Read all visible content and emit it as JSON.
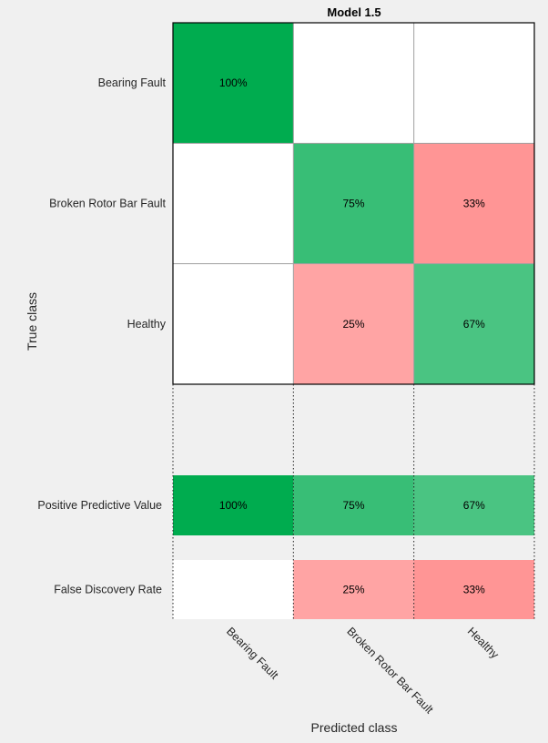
{
  "chart_data": {
    "type": "heatmap",
    "title": "Model 1.5",
    "xlabel": "Predicted class",
    "ylabel": "True class",
    "classes": [
      "Bearing Fault",
      "Broken Rotor Bar Fault",
      "Healthy"
    ],
    "matrix": [
      [
        "100%",
        "",
        ""
      ],
      [
        "",
        "75%",
        "33%"
      ],
      [
        "",
        "25%",
        "67%"
      ]
    ],
    "matrix_values": [
      [
        1.0,
        0,
        0
      ],
      [
        0,
        0.75,
        0.33
      ],
      [
        0,
        0.25,
        0.67
      ]
    ],
    "summary_rows": [
      {
        "label": "Positive Predictive Value",
        "kind": "good",
        "cells": [
          "100%",
          "75%",
          "67%"
        ],
        "values": [
          1.0,
          0.75,
          0.67
        ]
      },
      {
        "label": "False Discovery Rate",
        "kind": "bad",
        "cells": [
          "",
          "25%",
          "33%"
        ],
        "values": [
          0,
          0.25,
          0.33
        ]
      }
    ],
    "colors": {
      "background": "#f0f0f0",
      "empty": "#ffffff",
      "good_100": "#00ac4f",
      "good_75": "#3bc17a",
      "good_67": "#4ec688",
      "bad_33": "#ff9a9a",
      "bad_25": "#ffaaaa"
    }
  }
}
